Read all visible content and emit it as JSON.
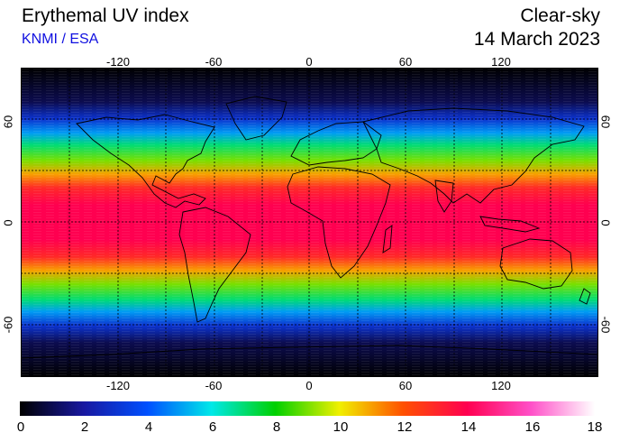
{
  "header": {
    "title": "Erythemal UV index",
    "source": "KNMI / ESA",
    "condition": "Clear-sky",
    "date": "14 March 2023"
  },
  "map": {
    "lon_ticks": [
      "-120",
      "-60",
      "0",
      "60",
      "120"
    ],
    "lat_ticks": [
      "60",
      "0",
      "-60"
    ],
    "lon_range": [
      -180,
      180
    ],
    "lat_range": [
      -90,
      90
    ],
    "gridlines": "dashed every 30 degrees",
    "background_color": "#000000",
    "uv_by_latitude": [
      {
        "lat": 90,
        "uv": 0
      },
      {
        "lat": 70,
        "uv": 1
      },
      {
        "lat": 60,
        "uv": 3
      },
      {
        "lat": 52,
        "uv": 5
      },
      {
        "lat": 45,
        "uv": 7
      },
      {
        "lat": 36,
        "uv": 9
      },
      {
        "lat": 28,
        "uv": 11
      },
      {
        "lat": 20,
        "uv": 13
      },
      {
        "lat": 10,
        "uv": 14
      },
      {
        "lat": 0,
        "uv": 14
      },
      {
        "lat": -10,
        "uv": 14
      },
      {
        "lat": -20,
        "uv": 13
      },
      {
        "lat": -28,
        "uv": 11
      },
      {
        "lat": -36,
        "uv": 9
      },
      {
        "lat": -45,
        "uv": 7
      },
      {
        "lat": -52,
        "uv": 5
      },
      {
        "lat": -60,
        "uv": 3
      },
      {
        "lat": -70,
        "uv": 1
      },
      {
        "lat": -90,
        "uv": 0
      }
    ]
  },
  "colorbar": {
    "labels": [
      "0",
      "2",
      "4",
      "6",
      "8",
      "10",
      "12",
      "14",
      "16",
      "18"
    ],
    "range": [
      0,
      18
    ],
    "colors": [
      {
        "uv": 0,
        "color": "#000000"
      },
      {
        "uv": 2,
        "color": "#1818a0"
      },
      {
        "uv": 4,
        "color": "#0050ff"
      },
      {
        "uv": 6,
        "color": "#00e8e8"
      },
      {
        "uv": 8,
        "color": "#00d000"
      },
      {
        "uv": 10,
        "color": "#f0f000"
      },
      {
        "uv": 12,
        "color": "#ff5000"
      },
      {
        "uv": 14,
        "color": "#ff0050"
      },
      {
        "uv": 16,
        "color": "#ff50c8"
      },
      {
        "uv": 18,
        "color": "#ffffff"
      }
    ]
  }
}
